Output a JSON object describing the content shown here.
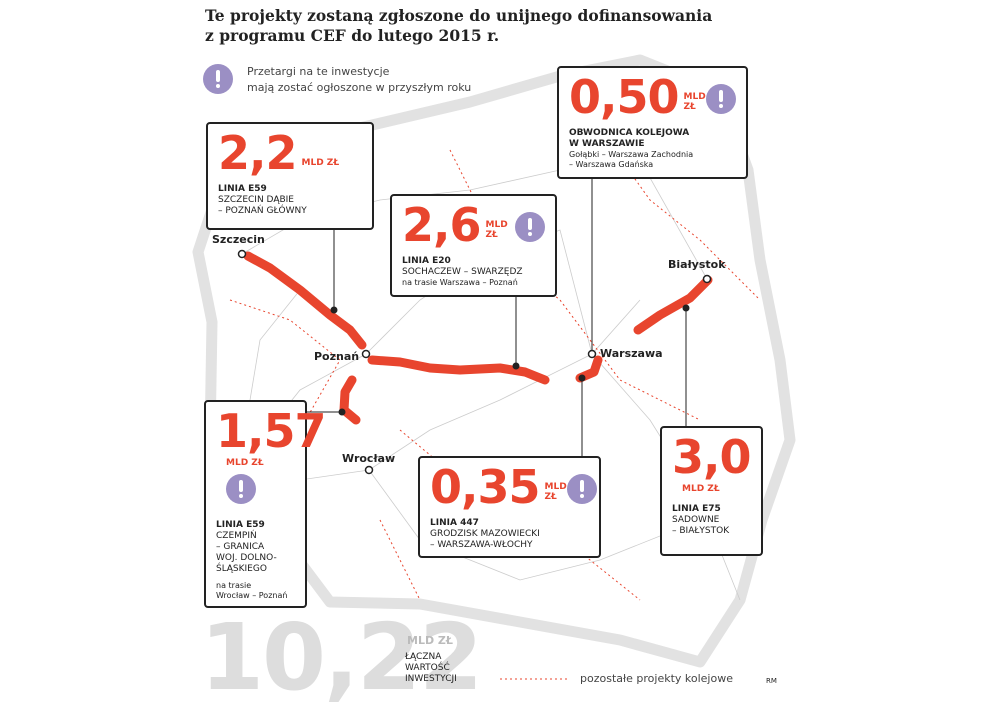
{
  "header": {
    "title_lines": [
      "Te projekty zostaną zgłoszone do unijnego dofinansowania",
      "z programu CEF do lutego 2015 r."
    ]
  },
  "tender_legend": {
    "lines": [
      "Przetargi na te inwestycje",
      "mają zostać ogłoszone w przyszłym roku"
    ]
  },
  "cities": [
    "Szczecin",
    "Poznań",
    "Wrocław",
    "Warszawa",
    "Białystok"
  ],
  "projects": [
    {
      "value": "2,2",
      "unit": "MLD ZŁ",
      "title_lines": [
        "LINIA E59"
      ],
      "route_lines": [
        "SZCZECIN DĄBIE",
        "– POZNAŃ GŁÓWNY"
      ],
      "note_lines": [],
      "tender": false
    },
    {
      "value": "2,6",
      "unit": "MLD ZŁ",
      "title_lines": [
        "LINIA E20"
      ],
      "route_lines": [
        "SOCHACZEW – SWARZĘDZ"
      ],
      "note_lines": [
        "na trasie Warszawa – Poznań"
      ],
      "tender": true
    },
    {
      "value": "0,50",
      "unit": "MLD ZŁ",
      "title_lines": [
        "OBWODNICA KOLEJOWA",
        "W WARSZAWIE"
      ],
      "route_lines": [],
      "note_lines": [
        "Gołąbki – Warszawa Zachodnia",
        "– Warszawa Gdańska"
      ],
      "tender": true
    },
    {
      "value": "1,57",
      "unit": "MLD ZŁ",
      "title_lines": [
        "LINIA E59"
      ],
      "route_lines": [
        "CZEMPIŃ",
        "– GRANICA",
        "WOJ. DOLNO-",
        "ŚLĄSKIEGO"
      ],
      "note_lines": [
        "na trasie",
        "Wrocław – Poznań"
      ],
      "tender": true
    },
    {
      "value": "0,35",
      "unit": "MLD ZŁ",
      "title_lines": [
        "LINIA 447"
      ],
      "route_lines": [
        "GRODZISK MAZOWIECKI",
        "– WARSZAWA-WŁOCHY"
      ],
      "note_lines": [],
      "tender": true
    },
    {
      "value": "3,0",
      "unit": "MLD ZŁ",
      "title_lines": [
        "LINIA E75"
      ],
      "route_lines": [
        "SADOWNE",
        "– BIAŁYSTOK"
      ],
      "note_lines": [],
      "tender": false
    }
  ],
  "total": {
    "value": "10,22",
    "unit": "MLD ZŁ",
    "label_lines": [
      "ŁĄCZNA",
      "WARTOŚĆ",
      "INWESTYCJI"
    ]
  },
  "other_legend": "pozostałe projekty kolejowe",
  "credit": "RM"
}
